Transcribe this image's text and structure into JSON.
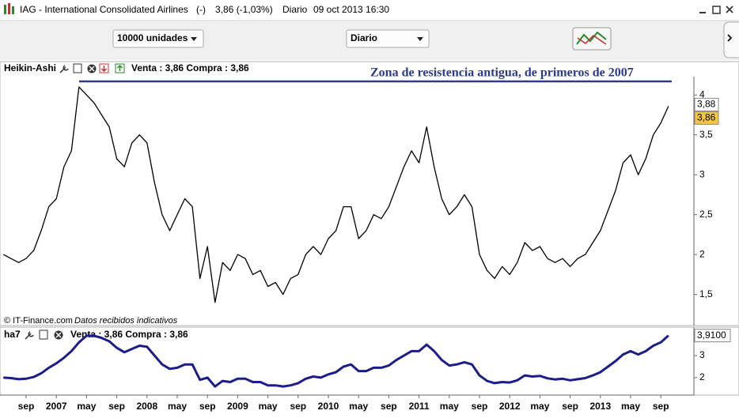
{
  "title_bar": {
    "title": "IAG - International Consolidated Airlines",
    "status": "(-)",
    "quote": "3,86 (-1,03%)",
    "period": "Diario",
    "datetime": "09 oct 2013 16:30"
  },
  "toolbar": {
    "quantity": "10000 unidades",
    "interval": "Diario"
  },
  "price_panel": {
    "indicator": "Heikin-Ashi",
    "quote": "Venta : 3,86 Compra : 3,86",
    "annotation": "Zona de resistencia antigua, de primeros de 2007",
    "source": "© IT-Finance.com",
    "source_note": "Datos recibidos indicativos",
    "chart_data": {
      "type": "line",
      "color": "#000000",
      "values": [
        2.0,
        1.95,
        1.9,
        1.95,
        2.05,
        2.3,
        2.6,
        2.7,
        3.1,
        3.3,
        4.1,
        4.0,
        3.9,
        3.75,
        3.6,
        3.2,
        3.1,
        3.4,
        3.5,
        3.4,
        2.9,
        2.5,
        2.3,
        2.5,
        2.7,
        2.6,
        1.7,
        2.1,
        1.4,
        1.9,
        1.8,
        2.0,
        1.95,
        1.75,
        1.8,
        1.6,
        1.65,
        1.5,
        1.7,
        1.75,
        2.0,
        2.1,
        2.0,
        2.2,
        2.3,
        2.6,
        2.6,
        2.2,
        2.3,
        2.5,
        2.45,
        2.6,
        2.85,
        3.1,
        3.3,
        3.15,
        3.6,
        3.1,
        2.7,
        2.5,
        2.6,
        2.75,
        2.6,
        2.0,
        1.8,
        1.7,
        1.85,
        1.75,
        1.9,
        2.15,
        2.05,
        2.1,
        1.95,
        1.9,
        1.95,
        1.85,
        1.95,
        2.0,
        2.15,
        2.3,
        2.55,
        2.8,
        3.15,
        3.25,
        3.0,
        3.2,
        3.5,
        3.65,
        3.86
      ],
      "ylim": [
        1.11,
        4.23
      ],
      "yticks": [
        4,
        {
          "value": 3.5,
          "label": "3,5"
        },
        3,
        {
          "value": 2.5,
          "label": "2,5"
        },
        2,
        {
          "value": 1.5,
          "label": "1,5"
        }
      ],
      "markers": [
        {
          "value": 3.88,
          "label": "3,88"
        },
        {
          "value": 3.86,
          "label": "3,86"
        }
      ]
    }
  },
  "indicator_panel": {
    "indicator": "ha7",
    "quote": "Venta : 3,86 Compra : 3,86",
    "chart_data": {
      "type": "line",
      "color": "#1c1c8a",
      "values": [
        2.0,
        1.98,
        1.93,
        1.95,
        2.03,
        2.2,
        2.45,
        2.65,
        2.9,
        3.2,
        3.6,
        3.9,
        3.9,
        3.8,
        3.65,
        3.35,
        3.15,
        3.3,
        3.45,
        3.4,
        3.0,
        2.6,
        2.4,
        2.45,
        2.6,
        2.6,
        1.9,
        2.0,
        1.6,
        1.85,
        1.8,
        1.95,
        1.95,
        1.8,
        1.8,
        1.65,
        1.65,
        1.6,
        1.65,
        1.75,
        1.95,
        2.05,
        2.0,
        2.15,
        2.25,
        2.5,
        2.6,
        2.3,
        2.3,
        2.45,
        2.45,
        2.55,
        2.8,
        3.0,
        3.2,
        3.2,
        3.5,
        3.2,
        2.8,
        2.55,
        2.6,
        2.7,
        2.6,
        2.1,
        1.85,
        1.75,
        1.8,
        1.78,
        1.88,
        2.1,
        2.05,
        2.08,
        1.97,
        1.92,
        1.95,
        1.88,
        1.93,
        1.98,
        2.1,
        2.25,
        2.5,
        2.75,
        3.05,
        3.2,
        3.05,
        3.2,
        3.45,
        3.6,
        3.91
      ],
      "ylim": [
        1.21,
        4.29
      ],
      "yticks": [
        3,
        2
      ],
      "markers": [
        {
          "value": 3.91,
          "label": "3,9100"
        }
      ]
    }
  },
  "x_axis": {
    "labels": [
      "sep",
      "2007",
      "may",
      "sep",
      "2008",
      "may",
      "sep",
      "2009",
      "may",
      "sep",
      "2010",
      "may",
      "sep",
      "2011",
      "may",
      "sep",
      "2012",
      "may",
      "sep",
      "2013",
      "may",
      "sep"
    ]
  }
}
